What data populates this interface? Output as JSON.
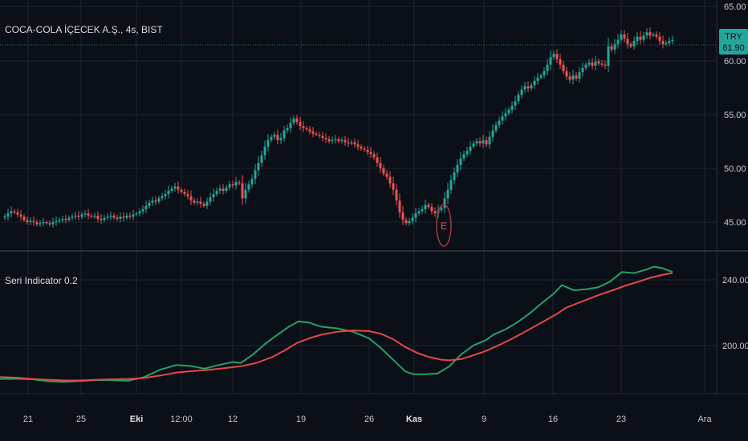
{
  "main": {
    "title": "COCA-COLA İÇECEK A.Ş., 4s, BIST",
    "currency": "TRY",
    "price_tag": "61.90",
    "y_ticks": [
      "65.00",
      "60.00",
      "55.00",
      "50.00",
      "45.00"
    ],
    "y_range": [
      41.5,
      65.5
    ],
    "earnings_marker": "E"
  },
  "indicator": {
    "title": "Seri Indicator 0.2",
    "y_ticks": [
      "240.00",
      "200.00"
    ],
    "y_range": [
      168,
      252
    ]
  },
  "x_axis": {
    "ticks": [
      "21",
      "25",
      "Eki",
      "12:00",
      "12",
      "19",
      "26",
      "Kas",
      "9",
      "16",
      "23",
      "Ara"
    ],
    "bold_ticks": [
      "Eki",
      "Kas"
    ]
  },
  "colors": {
    "background": "#0b0f17",
    "grid": "#1f2430",
    "up": "#26a69a",
    "down": "#ef5350",
    "fast_line": "#26a069",
    "slow_line": "#e24848",
    "price_tag_bg": "#26a69a"
  },
  "chart_data": [
    {
      "type": "candlestick",
      "title": "COCA-COLA İÇECEK A.Ş., 4s, BIST",
      "y_range": [
        41.5,
        65.5
      ],
      "close_path": [
        [
          0,
          45.4
        ],
        [
          6,
          45.5
        ],
        [
          10,
          45.8
        ],
        [
          14,
          46.0
        ],
        [
          18,
          45.9
        ],
        [
          22,
          45.7
        ],
        [
          26,
          45.5
        ],
        [
          30,
          45.2
        ],
        [
          34,
          45.0
        ],
        [
          38,
          45.1
        ],
        [
          42,
          45.0
        ],
        [
          46,
          44.8
        ],
        [
          50,
          44.9
        ],
        [
          54,
          45.0
        ],
        [
          58,
          44.9
        ],
        [
          62,
          44.8
        ],
        [
          66,
          45.0
        ],
        [
          70,
          45.1
        ],
        [
          74,
          45.2
        ],
        [
          78,
          45.3
        ],
        [
          82,
          45.2
        ],
        [
          86,
          45.4
        ],
        [
          90,
          45.5
        ],
        [
          94,
          45.6
        ],
        [
          98,
          45.5
        ],
        [
          102,
          45.7
        ],
        [
          106,
          45.8
        ],
        [
          110,
          45.6
        ],
        [
          114,
          45.5
        ],
        [
          118,
          45.6
        ],
        [
          122,
          45.3
        ],
        [
          126,
          45.2
        ],
        [
          130,
          45.4
        ],
        [
          134,
          45.5
        ],
        [
          138,
          45.6
        ],
        [
          142,
          45.4
        ],
        [
          146,
          45.3
        ],
        [
          150,
          45.5
        ],
        [
          154,
          45.4
        ],
        [
          158,
          45.6
        ],
        [
          162,
          45.5
        ],
        [
          166,
          45.7
        ],
        [
          170,
          45.8
        ],
        [
          174,
          46.0
        ],
        [
          178,
          46.2
        ],
        [
          182,
          46.5
        ],
        [
          186,
          46.8
        ],
        [
          190,
          47.0
        ],
        [
          194,
          46.9
        ],
        [
          198,
          47.2
        ],
        [
          202,
          47.4
        ],
        [
          206,
          47.6
        ],
        [
          210,
          47.9
        ],
        [
          214,
          48.1
        ],
        [
          218,
          48.3
        ],
        [
          222,
          48.0
        ],
        [
          226,
          47.8
        ],
        [
          230,
          47.6
        ],
        [
          234,
          47.4
        ],
        [
          238,
          47.0
        ],
        [
          242,
          46.8
        ],
        [
          246,
          46.9
        ],
        [
          250,
          46.7
        ],
        [
          254,
          46.5
        ],
        [
          258,
          46.9
        ],
        [
          262,
          47.3
        ],
        [
          266,
          47.6
        ],
        [
          270,
          47.9
        ],
        [
          274,
          48.1
        ],
        [
          278,
          47.9
        ],
        [
          282,
          48.2
        ],
        [
          286,
          48.5
        ],
        [
          290,
          48.4
        ],
        [
          294,
          48.7
        ],
        [
          298,
          48.6
        ],
        [
          302,
          47.2
        ],
        [
          306,
          48.0
        ],
        [
          310,
          48.5
        ],
        [
          314,
          49.0
        ],
        [
          318,
          49.8
        ],
        [
          322,
          50.5
        ],
        [
          326,
          51.2
        ],
        [
          330,
          52.0
        ],
        [
          334,
          52.6
        ],
        [
          338,
          52.9
        ],
        [
          342,
          53.1
        ],
        [
          346,
          52.6
        ],
        [
          350,
          52.8
        ],
        [
          354,
          53.5
        ],
        [
          358,
          53.7
        ],
        [
          362,
          54.2
        ],
        [
          366,
          54.6
        ],
        [
          370,
          54.3
        ],
        [
          374,
          53.9
        ],
        [
          378,
          53.7
        ],
        [
          382,
          53.6
        ],
        [
          386,
          53.4
        ],
        [
          390,
          53.2
        ],
        [
          394,
          53.1
        ],
        [
          398,
          53.0
        ],
        [
          402,
          52.8
        ],
        [
          406,
          52.7
        ],
        [
          410,
          52.5
        ],
        [
          414,
          52.6
        ],
        [
          418,
          52.7
        ],
        [
          422,
          52.5
        ],
        [
          426,
          52.6
        ],
        [
          430,
          52.4
        ],
        [
          434,
          52.3
        ],
        [
          438,
          52.4
        ],
        [
          442,
          52.2
        ],
        [
          446,
          52.0
        ],
        [
          450,
          51.8
        ],
        [
          454,
          51.7
        ],
        [
          458,
          51.5
        ],
        [
          462,
          51.3
        ],
        [
          466,
          51.0
        ],
        [
          470,
          50.5
        ],
        [
          474,
          50.0
        ],
        [
          478,
          49.5
        ],
        [
          482,
          49.2
        ],
        [
          486,
          48.6
        ],
        [
          490,
          48.0
        ],
        [
          494,
          47.0
        ],
        [
          498,
          45.9
        ],
        [
          502,
          45.2
        ],
        [
          506,
          44.9
        ],
        [
          510,
          45.1
        ],
        [
          514,
          45.4
        ],
        [
          518,
          45.8
        ],
        [
          522,
          46.0
        ],
        [
          526,
          46.2
        ],
        [
          530,
          46.6
        ],
        [
          534,
          46.4
        ],
        [
          538,
          46.0
        ],
        [
          542,
          45.8
        ],
        [
          546,
          46.1
        ],
        [
          550,
          46.3
        ],
        [
          554,
          47.2
        ],
        [
          558,
          48.0
        ],
        [
          562,
          48.9
        ],
        [
          566,
          49.6
        ],
        [
          570,
          50.3
        ],
        [
          574,
          50.9
        ],
        [
          578,
          51.3
        ],
        [
          582,
          51.6
        ],
        [
          586,
          52.0
        ],
        [
          590,
          52.3
        ],
        [
          594,
          52.5
        ],
        [
          598,
          52.3
        ],
        [
          602,
          52.6
        ],
        [
          606,
          52.2
        ],
        [
          610,
          52.9
        ],
        [
          614,
          53.5
        ],
        [
          618,
          54.0
        ],
        [
          622,
          54.4
        ],
        [
          626,
          54.8
        ],
        [
          630,
          55.1
        ],
        [
          634,
          55.4
        ],
        [
          638,
          55.8
        ],
        [
          642,
          56.2
        ],
        [
          646,
          56.8
        ],
        [
          650,
          57.3
        ],
        [
          654,
          57.6
        ],
        [
          658,
          57.4
        ],
        [
          662,
          57.7
        ],
        [
          666,
          58.1
        ],
        [
          670,
          58.4
        ],
        [
          674,
          58.6
        ],
        [
          678,
          59.0
        ],
        [
          682,
          59.6
        ],
        [
          686,
          60.3
        ],
        [
          690,
          60.6
        ],
        [
          694,
          60.1
        ],
        [
          698,
          59.6
        ],
        [
          702,
          59.0
        ],
        [
          706,
          58.5
        ],
        [
          710,
          58.2
        ],
        [
          714,
          58.6
        ],
        [
          718,
          58.3
        ],
        [
          722,
          58.9
        ],
        [
          726,
          59.3
        ],
        [
          730,
          59.6
        ],
        [
          734,
          59.8
        ],
        [
          738,
          59.5
        ],
        [
          742,
          59.9
        ],
        [
          746,
          59.7
        ],
        [
          750,
          59.6
        ],
        [
          754,
          59.5
        ],
        [
          758,
          61.3
        ],
        [
          762,
          61.0
        ],
        [
          766,
          61.5
        ],
        [
          770,
          61.9
        ],
        [
          774,
          62.4
        ],
        [
          778,
          62.0
        ],
        [
          782,
          61.5
        ],
        [
          786,
          61.3
        ],
        [
          790,
          61.8
        ],
        [
          794,
          62.2
        ],
        [
          798,
          61.9
        ],
        [
          802,
          62.3
        ],
        [
          806,
          62.6
        ],
        [
          810,
          62.3
        ],
        [
          814,
          62.4
        ],
        [
          818,
          62.2
        ],
        [
          822,
          61.8
        ],
        [
          826,
          61.5
        ],
        [
          830,
          61.6
        ],
        [
          834,
          61.8
        ],
        [
          838,
          61.9
        ]
      ]
    },
    {
      "type": "line",
      "title": "Seri Indicator 0.2",
      "y_range": [
        168,
        252
      ],
      "series": [
        {
          "values": [
            [
              0,
              179.7
            ],
            [
              20,
              179.8
            ],
            [
              40,
              179.5
            ],
            [
              60,
              178.3
            ],
            [
              80,
              177.9
            ],
            [
              100,
              178.4
            ],
            [
              120,
              179.0
            ],
            [
              140,
              179.0
            ],
            [
              160,
              178.6
            ],
            [
              180,
              180.9
            ],
            [
              200,
              185.4
            ],
            [
              220,
              188.2
            ],
            [
              240,
              187.4
            ],
            [
              255,
              185.9
            ],
            [
              270,
              187.9
            ],
            [
              290,
              190.0
            ],
            [
              300,
              189.4
            ],
            [
              315,
              194.5
            ],
            [
              330,
              200.9
            ],
            [
              345,
              206.4
            ],
            [
              360,
              211.5
            ],
            [
              372,
              214.7
            ],
            [
              385,
              214.0
            ],
            [
              400,
              211.5
            ],
            [
              420,
              210.5
            ],
            [
              440,
              208.4
            ],
            [
              460,
              204.4
            ],
            [
              475,
              198.3
            ],
            [
              490,
              191.3
            ],
            [
              505,
              184.3
            ],
            [
              515,
              182.6
            ],
            [
              530,
              182.6
            ],
            [
              545,
              183.0
            ],
            [
              560,
              187.4
            ],
            [
              575,
              194.8
            ],
            [
              590,
              200.1
            ],
            [
              605,
              203.2
            ],
            [
              615,
              206.7
            ],
            [
              630,
              209.9
            ],
            [
              645,
              214.3
            ],
            [
              660,
              219.6
            ],
            [
              675,
              225.8
            ],
            [
              690,
              231.6
            ],
            [
              700,
              236.8
            ],
            [
              715,
              233.6
            ],
            [
              730,
              234.3
            ],
            [
              745,
              235.4
            ],
            [
              760,
              238.9
            ],
            [
              775,
              244.8
            ],
            [
              790,
              244.1
            ],
            [
              805,
              246.2
            ],
            [
              815,
              248.0
            ],
            [
              825,
              247.1
            ],
            [
              838,
              244.8
            ]
          ]
        },
        {
          "values": [
            [
              0,
              180.9
            ],
            [
              20,
              180.5
            ],
            [
              40,
              179.7
            ],
            [
              60,
              179.2
            ],
            [
              80,
              178.8
            ],
            [
              100,
              178.8
            ],
            [
              120,
              179.2
            ],
            [
              140,
              179.5
            ],
            [
              160,
              179.7
            ],
            [
              180,
              180.3
            ],
            [
              200,
              181.8
            ],
            [
              220,
              183.6
            ],
            [
              240,
              184.5
            ],
            [
              260,
              185.2
            ],
            [
              280,
              186.3
            ],
            [
              300,
              187.4
            ],
            [
              320,
              189.5
            ],
            [
              340,
              193.2
            ],
            [
              355,
              197.1
            ],
            [
              370,
              201.6
            ],
            [
              385,
              204.4
            ],
            [
              400,
              206.6
            ],
            [
              420,
              208.4
            ],
            [
              440,
              209.2
            ],
            [
              460,
              208.8
            ],
            [
              475,
              207.1
            ],
            [
              490,
              203.8
            ],
            [
              505,
              199.1
            ],
            [
              520,
              195.5
            ],
            [
              535,
              193.0
            ],
            [
              550,
              191.4
            ],
            [
              560,
              191.0
            ],
            [
              575,
              191.8
            ],
            [
              590,
              194.1
            ],
            [
              605,
              196.7
            ],
            [
              620,
              199.9
            ],
            [
              635,
              203.4
            ],
            [
              650,
              207.3
            ],
            [
              665,
              211.3
            ],
            [
              680,
              215.4
            ],
            [
              695,
              219.6
            ],
            [
              705,
              223.0
            ],
            [
              720,
              225.8
            ],
            [
              735,
              228.7
            ],
            [
              750,
              231.5
            ],
            [
              765,
              233.9
            ],
            [
              780,
              236.6
            ],
            [
              795,
              238.8
            ],
            [
              810,
              241.2
            ],
            [
              825,
              243.0
            ],
            [
              838,
              244.2
            ]
          ]
        }
      ]
    }
  ]
}
